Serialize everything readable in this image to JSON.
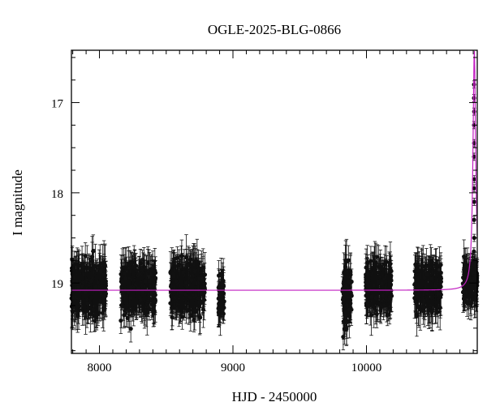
{
  "chart_data": {
    "type": "scatter",
    "title": "OGLE-2025-BLG-0866",
    "xlabel": "HJD - 2450000",
    "ylabel": "I magnitude",
    "xlim": [
      7790,
      10830
    ],
    "ylim": [
      19.78,
      16.42
    ],
    "y_inverted": true,
    "grid": false,
    "x_ticks": [
      8000,
      9000,
      10000
    ],
    "x_tick_labels": [
      "8000",
      "9000",
      "10000"
    ],
    "y_ticks": [
      17,
      18,
      19
    ],
    "y_tick_labels": [
      "17",
      "18",
      "19"
    ],
    "colors": {
      "points": "#111111",
      "model": "#c21fc2",
      "axes": "#000000"
    },
    "observing_seasons": [
      {
        "x_start": 7790,
        "x_end": 8050,
        "median_mag": 19.05,
        "scatter": 0.22
      },
      {
        "x_start": 8160,
        "x_end": 8420,
        "median_mag": 19.05,
        "scatter": 0.22
      },
      {
        "x_start": 8530,
        "x_end": 8790,
        "median_mag": 19.05,
        "scatter": 0.22
      },
      {
        "x_start": 8890,
        "x_end": 8935,
        "median_mag": 19.15,
        "scatter": 0.18
      },
      {
        "x_start": 9820,
        "x_end": 9890,
        "median_mag": 19.15,
        "scatter": 0.3
      },
      {
        "x_start": 9995,
        "x_end": 10190,
        "median_mag": 19.05,
        "scatter": 0.22
      },
      {
        "x_start": 10360,
        "x_end": 10560,
        "median_mag": 19.05,
        "scatter": 0.2
      },
      {
        "x_start": 10720,
        "x_end": 10830,
        "median_mag": 19.0,
        "scatter": 0.18
      }
    ],
    "event": {
      "peak_x": 10808,
      "baseline_mag": 19.08,
      "peak_mag": 16.42,
      "observed_points": [
        {
          "x": 10806,
          "y": 16.8
        },
        {
          "x": 10806,
          "y": 16.95
        },
        {
          "x": 10807,
          "y": 17.1
        },
        {
          "x": 10806,
          "y": 17.25
        },
        {
          "x": 10807,
          "y": 17.45
        },
        {
          "x": 10806,
          "y": 17.6
        },
        {
          "x": 10807,
          "y": 17.85
        },
        {
          "x": 10806,
          "y": 17.95
        },
        {
          "x": 10807,
          "y": 18.1
        },
        {
          "x": 10806,
          "y": 18.3
        },
        {
          "x": 10807,
          "y": 18.5
        },
        {
          "x": 10805,
          "y": 18.65
        },
        {
          "x": 10804,
          "y": 18.75
        },
        {
          "x": 10808,
          "y": 18.8
        },
        {
          "x": 10802,
          "y": 18.9
        },
        {
          "x": 10810,
          "y": 18.95
        }
      ]
    },
    "series": [
      {
        "type": "scatter-with-errorbars"
      },
      {
        "type": "model-line"
      }
    ]
  }
}
